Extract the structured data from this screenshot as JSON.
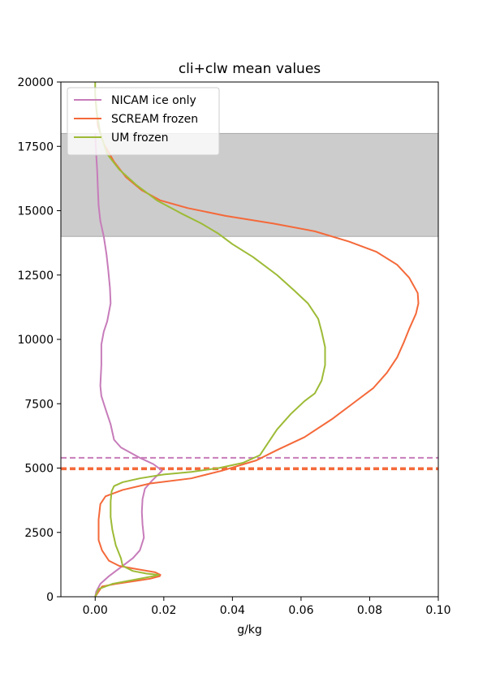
{
  "chart_data": {
    "type": "line",
    "title": "cli+clw mean values",
    "xlabel": "g/kg",
    "ylabel": "",
    "xlim": [
      -0.01,
      0.1
    ],
    "ylim": [
      0,
      20000
    ],
    "xticks": [
      0.0,
      0.02,
      0.04,
      0.06,
      0.08,
      0.1
    ],
    "xtick_labels": [
      "0.00",
      "0.02",
      "0.04",
      "0.06",
      "0.08",
      "0.10"
    ],
    "yticks": [
      0,
      2500,
      5000,
      7500,
      10000,
      12500,
      15000,
      17500,
      20000
    ],
    "ytick_labels": [
      "0",
      "2500",
      "5000",
      "7500",
      "10000",
      "12500",
      "15000",
      "17500",
      "20000"
    ],
    "grid": false,
    "legend_position": "top-left",
    "shaded_band": {
      "y_range": [
        14000,
        18000
      ],
      "color": "#cccccc"
    },
    "horizontal_lines": [
      {
        "y": 5400,
        "color": "#c77cba",
        "style": "dashed"
      },
      {
        "y": 5000,
        "color": "#f4693a",
        "style": "dashed"
      },
      {
        "y": 4950,
        "color": "#f4693a",
        "style": "dashed"
      }
    ],
    "series": [
      {
        "name": "NICAM ice only",
        "color": "#c77cba",
        "points": [
          [
            0.0,
            0
          ],
          [
            0.0003,
            200
          ],
          [
            0.0015,
            500
          ],
          [
            0.004,
            800
          ],
          [
            0.006,
            1000
          ],
          [
            0.009,
            1300
          ],
          [
            0.011,
            1500
          ],
          [
            0.013,
            1800
          ],
          [
            0.0135,
            2000
          ],
          [
            0.0142,
            2300
          ],
          [
            0.0138,
            2800
          ],
          [
            0.0136,
            3300
          ],
          [
            0.0138,
            3800
          ],
          [
            0.0145,
            4200
          ],
          [
            0.0165,
            4500
          ],
          [
            0.0195,
            4900
          ],
          [
            0.017,
            5150
          ],
          [
            0.013,
            5400
          ],
          [
            0.0075,
            5800
          ],
          [
            0.0055,
            6100
          ],
          [
            0.0045,
            6700
          ],
          [
            0.003,
            7300
          ],
          [
            0.0018,
            7800
          ],
          [
            0.0015,
            8200
          ],
          [
            0.0018,
            9000
          ],
          [
            0.0018,
            9800
          ],
          [
            0.0025,
            10300
          ],
          [
            0.0035,
            10700
          ],
          [
            0.0045,
            11400
          ],
          [
            0.0043,
            12000
          ],
          [
            0.0038,
            12700
          ],
          [
            0.0033,
            13300
          ],
          [
            0.0025,
            14000
          ],
          [
            0.0015,
            14600
          ],
          [
            0.001,
            15200
          ],
          [
            0.0008,
            15800
          ],
          [
            0.0006,
            16500
          ],
          [
            0.0003,
            17200
          ],
          [
            0.0,
            18000
          ]
        ]
      },
      {
        "name": "SCREAM frozen",
        "color": "#f4693a",
        "points": [
          [
            0.0,
            0
          ],
          [
            0.002,
            400
          ],
          [
            0.006,
            500
          ],
          [
            0.011,
            600
          ],
          [
            0.016,
            700
          ],
          [
            0.0188,
            800
          ],
          [
            0.019,
            850
          ],
          [
            0.0175,
            950
          ],
          [
            0.011,
            1100
          ],
          [
            0.007,
            1200
          ],
          [
            0.004,
            1400
          ],
          [
            0.002,
            1800
          ],
          [
            0.001,
            2200
          ],
          [
            0.001,
            3000
          ],
          [
            0.0015,
            3600
          ],
          [
            0.003,
            3900
          ],
          [
            0.008,
            4150
          ],
          [
            0.016,
            4400
          ],
          [
            0.028,
            4600
          ],
          [
            0.037,
            4900
          ],
          [
            0.047,
            5300
          ],
          [
            0.053,
            5700
          ],
          [
            0.061,
            6200
          ],
          [
            0.069,
            6900
          ],
          [
            0.075,
            7500
          ],
          [
            0.081,
            8100
          ],
          [
            0.085,
            8700
          ],
          [
            0.088,
            9300
          ],
          [
            0.09,
            9900
          ],
          [
            0.0915,
            10400
          ],
          [
            0.0925,
            10700
          ],
          [
            0.0935,
            11000
          ],
          [
            0.0942,
            11400
          ],
          [
            0.094,
            11800
          ],
          [
            0.0915,
            12400
          ],
          [
            0.088,
            12900
          ],
          [
            0.082,
            13400
          ],
          [
            0.074,
            13800
          ],
          [
            0.064,
            14200
          ],
          [
            0.052,
            14500
          ],
          [
            0.038,
            14800
          ],
          [
            0.027,
            15100
          ],
          [
            0.019,
            15400
          ],
          [
            0.0135,
            15800
          ],
          [
            0.009,
            16300
          ],
          [
            0.0055,
            16900
          ],
          [
            0.0025,
            17600
          ],
          [
            0.0008,
            18300
          ],
          [
            0.0003,
            19000
          ],
          [
            0.0,
            19500
          ]
        ]
      },
      {
        "name": "UM frozen",
        "color": "#9dbb36",
        "points": [
          [
            0.0,
            0
          ],
          [
            0.001,
            300
          ],
          [
            0.005,
            500
          ],
          [
            0.011,
            650
          ],
          [
            0.017,
            800
          ],
          [
            0.0185,
            850
          ],
          [
            0.015,
            900
          ],
          [
            0.011,
            1000
          ],
          [
            0.008,
            1200
          ],
          [
            0.0075,
            1500
          ],
          [
            0.006,
            2000
          ],
          [
            0.005,
            2600
          ],
          [
            0.0045,
            3100
          ],
          [
            0.0045,
            3700
          ],
          [
            0.0048,
            4100
          ],
          [
            0.0055,
            4300
          ],
          [
            0.008,
            4450
          ],
          [
            0.013,
            4600
          ],
          [
            0.02,
            4750
          ],
          [
            0.028,
            4850
          ],
          [
            0.036,
            5000
          ],
          [
            0.043,
            5200
          ],
          [
            0.048,
            5500
          ],
          [
            0.05,
            5900
          ],
          [
            0.053,
            6500
          ],
          [
            0.057,
            7100
          ],
          [
            0.061,
            7600
          ],
          [
            0.064,
            7900
          ],
          [
            0.066,
            8400
          ],
          [
            0.067,
            9000
          ],
          [
            0.067,
            9700
          ],
          [
            0.066,
            10300
          ],
          [
            0.065,
            10800
          ],
          [
            0.063,
            11200
          ],
          [
            0.062,
            11400
          ],
          [
            0.058,
            11900
          ],
          [
            0.053,
            12500
          ],
          [
            0.046,
            13200
          ],
          [
            0.04,
            13700
          ],
          [
            0.036,
            14100
          ],
          [
            0.031,
            14500
          ],
          [
            0.025,
            14900
          ],
          [
            0.018,
            15400
          ],
          [
            0.012,
            16000
          ],
          [
            0.007,
            16600
          ],
          [
            0.0035,
            17200
          ],
          [
            0.0015,
            18000
          ],
          [
            0.0005,
            18800
          ],
          [
            0.0,
            19500
          ],
          [
            0.0,
            20000
          ]
        ]
      }
    ]
  }
}
